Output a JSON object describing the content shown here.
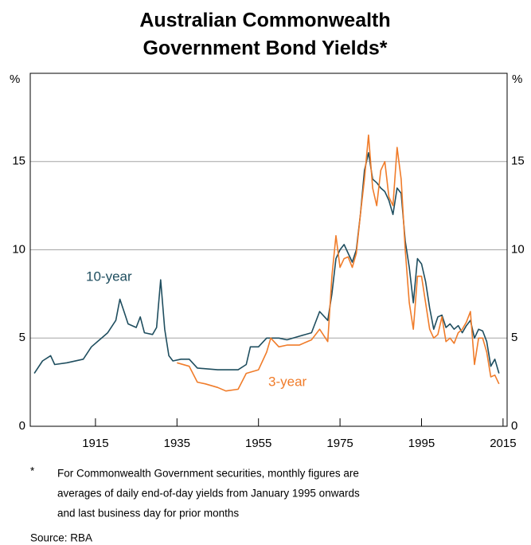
{
  "chart_data": {
    "type": "line",
    "title": [
      "Australian Commonwealth",
      "Government Bond Yields*"
    ],
    "y_unit_label": "%",
    "xlim": [
      1899,
      2016
    ],
    "xticks": [
      1915,
      1935,
      1955,
      1975,
      1995,
      2015
    ],
    "ylim": [
      0,
      20
    ],
    "yticks": [
      0,
      5,
      10,
      15
    ],
    "grid": true,
    "series": [
      {
        "name": "10-year",
        "color": "#1f4e5f",
        "x": [
          1900,
          1902,
          1904,
          1905,
          1908,
          1912,
          1914,
          1916,
          1918,
          1920,
          1921,
          1922,
          1923,
          1925,
          1926,
          1927,
          1929,
          1930,
          1931,
          1932,
          1933,
          1934,
          1936,
          1938,
          1940,
          1945,
          1950,
          1952,
          1953,
          1955,
          1957,
          1960,
          1962,
          1965,
          1968,
          1970,
          1972,
          1973,
          1974,
          1975,
          1976,
          1978,
          1979,
          1980,
          1981,
          1982,
          1983,
          1984,
          1985,
          1986,
          1987,
          1988,
          1989,
          1990,
          1991,
          1992,
          1993,
          1994,
          1995,
          1996,
          1997,
          1998,
          1999,
          2000,
          2001,
          2002,
          2003,
          2004,
          2005,
          2006,
          2007,
          2008,
          2009,
          2010,
          2011,
          2012,
          2013,
          2014
        ],
        "values": [
          3.0,
          3.7,
          4.0,
          3.5,
          3.6,
          3.8,
          4.5,
          4.9,
          5.3,
          6.0,
          7.2,
          6.5,
          5.8,
          5.6,
          6.2,
          5.3,
          5.2,
          5.6,
          8.3,
          5.5,
          4.0,
          3.7,
          3.8,
          3.8,
          3.3,
          3.2,
          3.2,
          3.5,
          4.5,
          4.5,
          5.0,
          5.0,
          4.9,
          5.1,
          5.3,
          6.5,
          6.0,
          7.5,
          9.5,
          10.0,
          10.3,
          9.3,
          10.0,
          12.0,
          14.5,
          15.5,
          14.0,
          13.8,
          13.5,
          13.3,
          12.8,
          12.0,
          13.5,
          13.2,
          10.5,
          9.0,
          7.0,
          9.5,
          9.2,
          8.2,
          6.7,
          5.5,
          6.2,
          6.3,
          5.6,
          5.8,
          5.5,
          5.7,
          5.3,
          5.7,
          6.0,
          5.0,
          5.5,
          5.4,
          4.8,
          3.4,
          3.8,
          3.0
        ]
      },
      {
        "name": "3-year",
        "color": "#f07c2a",
        "x": [
          1935,
          1938,
          1940,
          1942,
          1945,
          1947,
          1950,
          1952,
          1955,
          1957,
          1958,
          1960,
          1962,
          1965,
          1968,
          1970,
          1972,
          1973,
          1974,
          1975,
          1976,
          1977,
          1978,
          1979,
          1980,
          1981,
          1982,
          1983,
          1984,
          1985,
          1986,
          1987,
          1988,
          1989,
          1990,
          1991,
          1992,
          1993,
          1994,
          1995,
          1996,
          1997,
          1998,
          1999,
          2000,
          2001,
          2002,
          2003,
          2004,
          2005,
          2006,
          2007,
          2008,
          2009,
          2010,
          2011,
          2012,
          2013,
          2014
        ],
        "values": [
          3.6,
          3.4,
          2.5,
          2.4,
          2.2,
          2.0,
          2.1,
          3.0,
          3.2,
          4.2,
          5.0,
          4.5,
          4.6,
          4.6,
          4.9,
          5.5,
          4.8,
          8.5,
          10.8,
          9.0,
          9.5,
          9.6,
          9.0,
          9.8,
          12.0,
          14.0,
          16.5,
          13.5,
          12.5,
          14.5,
          15.0,
          13.0,
          12.5,
          15.8,
          14.0,
          10.0,
          7.0,
          5.5,
          8.5,
          8.5,
          7.0,
          5.5,
          5.0,
          5.2,
          6.2,
          4.8,
          5.0,
          4.7,
          5.3,
          5.5,
          5.9,
          6.5,
          3.5,
          5.0,
          5.0,
          4.2,
          2.8,
          2.9,
          2.4
        ]
      }
    ],
    "footnote_marker": "*",
    "footnote": [
      "For Commonwealth Government securities, monthly figures are",
      "averages of daily end-of-day yields from January 1995 onwards",
      "and last business day for prior months"
    ],
    "source": "Source:  RBA"
  }
}
